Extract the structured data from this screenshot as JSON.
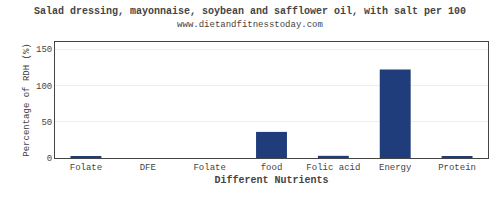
{
  "chart_data": {
    "type": "bar",
    "title": "Salad dressing, mayonnaise, soybean and safflower oil, with salt per 100",
    "subtitle": "www.dietandfitnesstoday.com",
    "xlabel": "Different Nutrients",
    "ylabel": "Percentage of RDH (%)",
    "categories": [
      "Folate",
      "DFE",
      "Folate",
      "food",
      "Folic acid",
      "Energy",
      "Protein"
    ],
    "values": [
      2.5,
      0.0,
      0.0,
      36.0,
      3.0,
      122.0,
      2.5
    ],
    "color": "#1f3d7a",
    "ylim": [
      0,
      160
    ],
    "yticks": [
      0,
      50,
      100,
      150
    ],
    "grid": true
  }
}
